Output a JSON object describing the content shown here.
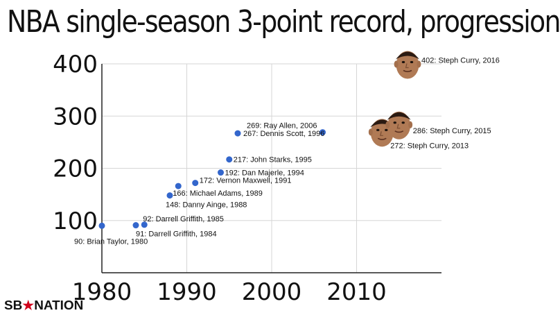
{
  "chart_data": {
    "type": "scatter",
    "title": "NBA single-season 3-point record, progression",
    "xlabel": "",
    "ylabel": "",
    "xlim": [
      1980,
      2020
    ],
    "ylim": [
      0,
      400
    ],
    "x_ticks": [
      "1980",
      "1990",
      "2000",
      "2010"
    ],
    "y_ticks": [
      "100",
      "200",
      "300",
      "400"
    ],
    "grid": true,
    "marker_color": "#3366cc",
    "points": [
      {
        "x": 1980,
        "y": 90,
        "label": "90: Brian Taylor, 1980",
        "marker": "dot"
      },
      {
        "x": 1984,
        "y": 91,
        "label": "91: Darrell Griffith, 1984",
        "marker": "dot"
      },
      {
        "x": 1985,
        "y": 92,
        "label": "92: Darrell Griffith, 1985",
        "marker": "dot"
      },
      {
        "x": 1988,
        "y": 148,
        "label": "148: Danny Ainge, 1988",
        "marker": "dot"
      },
      {
        "x": 1989,
        "y": 166,
        "label": "166: Michael Adams, 1989",
        "marker": "dot"
      },
      {
        "x": 1991,
        "y": 172,
        "label": "172: Vernon Maxwell, 1991",
        "marker": "dot"
      },
      {
        "x": 1994,
        "y": 192,
        "label": "192: Dan Majerle, 1994",
        "marker": "dot"
      },
      {
        "x": 1995,
        "y": 217,
        "label": "217: John Starks, 1995",
        "marker": "dot"
      },
      {
        "x": 1996,
        "y": 267,
        "label": "267: Dennis Scott, 1996",
        "marker": "dot"
      },
      {
        "x": 2006,
        "y": 269,
        "label": "269: Ray Allen, 2006",
        "marker": "dot"
      },
      {
        "x": 2013,
        "y": 272,
        "label": "272: Steph Curry, 2013",
        "marker": "face"
      },
      {
        "x": 2015,
        "y": 286,
        "label": "286: Steph Curry, 2015",
        "marker": "face"
      },
      {
        "x": 2016,
        "y": 402,
        "label": "402: Steph Curry, 2016",
        "marker": "face"
      }
    ]
  },
  "footer": {
    "logo_left": "SB",
    "logo_star": "★",
    "logo_right": "NATION",
    "logo_icon": "sb-nation-logo",
    "star_color": "#d0021b"
  }
}
